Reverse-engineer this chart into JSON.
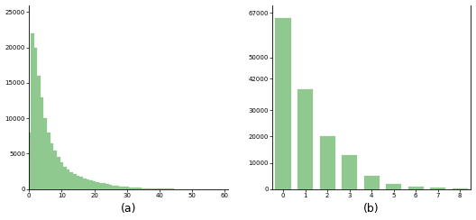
{
  "chart_a": {
    "bar_values": [
      8000,
      22000,
      20000,
      16000,
      13000,
      10000,
      8000,
      6500,
      5500,
      4500,
      3800,
      3200,
      2800,
      2400,
      2100,
      1900,
      1700,
      1550,
      1400,
      1250,
      1100,
      1000,
      900,
      800,
      700,
      600,
      500,
      450,
      400,
      350,
      300,
      260,
      220,
      190,
      160,
      140,
      120,
      100,
      80,
      65,
      50,
      45,
      40,
      35,
      30,
      25,
      20,
      18,
      15,
      12,
      10,
      8,
      7,
      6,
      5,
      4,
      3,
      3,
      2,
      2
    ],
    "xticks": [
      0,
      10,
      20,
      30,
      40,
      50,
      60
    ],
    "yticks": [
      0,
      5000,
      10000,
      15000,
      20000,
      25000
    ],
    "yticklabels": [
      "0",
      "5000",
      "10000",
      "15000",
      "20000",
      "25000"
    ],
    "xlim": [
      0,
      61
    ],
    "ylim": [
      0,
      26000
    ],
    "bar_color": "#90c990",
    "bar_edgecolor": "#90c990",
    "label": "(a)"
  },
  "chart_b": {
    "categories": [
      0,
      1,
      2,
      3,
      4,
      5,
      6,
      7,
      8
    ],
    "bar_values": [
      65000,
      38000,
      20000,
      13000,
      5000,
      2000,
      1000,
      500,
      200
    ],
    "xticks": [
      0,
      1,
      2,
      3,
      4,
      5,
      6,
      7,
      8
    ],
    "yticks": [
      0,
      10000,
      20000,
      30000,
      42000,
      50000,
      67000
    ],
    "yticklabels": [
      "0",
      "10000",
      "20000",
      "30000",
      "42000",
      "50000",
      "67000"
    ],
    "xlim": [
      -0.5,
      8.5
    ],
    "ylim": [
      0,
      70000
    ],
    "bar_color": "#90c990",
    "bar_edgecolor": "#90c990",
    "label": "(b)"
  },
  "figure": {
    "bg_color": "#ffffff",
    "tick_fontsize": 5,
    "label_fontsize": 9
  }
}
